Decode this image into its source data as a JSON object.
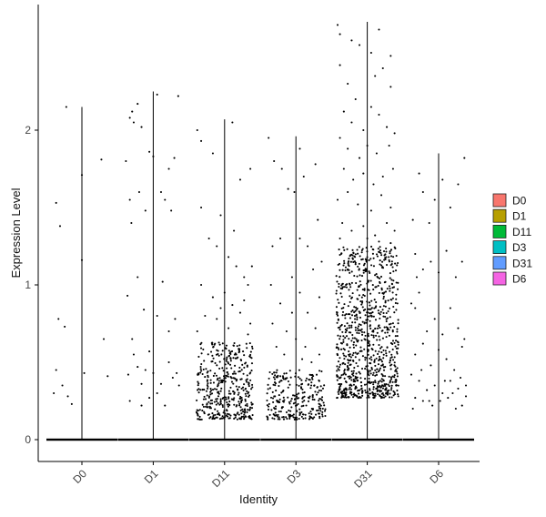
{
  "chart_data": {
    "type": "scatter",
    "subtype": "violin-jitter",
    "xlabel": "Identity",
    "ylabel": "Expression Level",
    "categories": [
      "D0",
      "D1",
      "D11",
      "D3",
      "D31",
      "D6"
    ],
    "ylim": [
      -0.15,
      2.8
    ],
    "yticks": [
      0,
      1,
      2
    ],
    "ytick_labels": [
      "0",
      "1",
      "2"
    ],
    "grid": false,
    "legend_position": "right",
    "legend": [
      {
        "label": "D0",
        "color": "#F8766D"
      },
      {
        "label": "D1",
        "color": "#B79F00"
      },
      {
        "label": "D11",
        "color": "#00BA38"
      },
      {
        "label": "D3",
        "color": "#00BFC4"
      },
      {
        "label": "D31",
        "color": "#619CFF"
      },
      {
        "label": "D6",
        "color": "#F564E3"
      }
    ],
    "series": [
      {
        "name": "D0",
        "max": 2.15,
        "points": [
          [
            -0.33,
            1.53
          ],
          [
            -0.28,
            1.38
          ],
          [
            -0.3,
            0.78
          ],
          [
            -0.33,
            0.45
          ],
          [
            -0.22,
            0.73
          ],
          [
            -0.25,
            0.35
          ],
          [
            -0.18,
            0.28
          ],
          [
            -0.13,
            0.23
          ],
          [
            -0.2,
            2.15
          ],
          [
            0.0,
            1.71
          ],
          [
            0.0,
            1.16
          ],
          [
            0.03,
            0.43
          ],
          [
            0.25,
            1.81
          ],
          [
            0.28,
            0.65
          ],
          [
            0.33,
            0.41
          ],
          [
            -0.36,
            0.3
          ]
        ]
      },
      {
        "name": "D1",
        "max": 2.25,
        "points": [
          [
            -0.3,
            2.08
          ],
          [
            -0.27,
            2.12
          ],
          [
            -0.2,
            2.17
          ],
          [
            -0.15,
            2.02
          ],
          [
            -0.25,
            2.05
          ],
          [
            0.05,
            2.23
          ],
          [
            0.32,
            2.22
          ],
          [
            -0.35,
            1.8
          ],
          [
            -0.3,
            1.55
          ],
          [
            -0.28,
            1.4
          ],
          [
            -0.18,
            1.6
          ],
          [
            -0.1,
            1.48
          ],
          [
            -0.05,
            1.86
          ],
          [
            0.0,
            1.83
          ],
          [
            0.1,
            1.6
          ],
          [
            0.15,
            1.55
          ],
          [
            0.2,
            1.75
          ],
          [
            0.23,
            1.48
          ],
          [
            0.27,
            1.82
          ],
          [
            -0.33,
            0.93
          ],
          [
            -0.27,
            0.65
          ],
          [
            -0.2,
            1.05
          ],
          [
            -0.12,
            0.84
          ],
          [
            -0.05,
            0.57
          ],
          [
            0.05,
            0.8
          ],
          [
            0.12,
            1.02
          ],
          [
            0.2,
            0.7
          ],
          [
            0.28,
            0.78
          ],
          [
            -0.32,
            0.42
          ],
          [
            -0.25,
            0.55
          ],
          [
            -0.15,
            0.36
          ],
          [
            -0.1,
            0.45
          ],
          [
            0.0,
            0.43
          ],
          [
            0.1,
            0.36
          ],
          [
            0.2,
            0.5
          ],
          [
            0.25,
            0.4
          ],
          [
            0.33,
            0.35
          ],
          [
            -0.3,
            0.25
          ],
          [
            -0.15,
            0.22
          ],
          [
            -0.05,
            0.27
          ],
          [
            0.05,
            0.3
          ],
          [
            0.15,
            0.22
          ],
          [
            -0.2,
            0.47
          ],
          [
            0.3,
            0.43
          ]
        ]
      },
      {
        "name": "D11",
        "max": 2.07,
        "points": [],
        "gen": {
          "n": 420,
          "min": 0.13,
          "max": 0.63,
          "seed": 11,
          "w": 0.36
        },
        "extra": [
          [
            -0.35,
            2.0
          ],
          [
            -0.3,
            1.93
          ],
          [
            -0.15,
            1.85
          ],
          [
            -0.05,
            1.45
          ],
          [
            0.1,
            2.05
          ],
          [
            0.2,
            1.68
          ],
          [
            0.33,
            1.75
          ],
          [
            -0.3,
            1.5
          ],
          [
            -0.2,
            1.3
          ],
          [
            -0.1,
            1.25
          ],
          [
            0.05,
            1.18
          ],
          [
            0.15,
            1.12
          ],
          [
            0.25,
            1.05
          ],
          [
            0.35,
            1.12
          ],
          [
            -0.3,
            1.0
          ],
          [
            -0.15,
            0.92
          ],
          [
            0.0,
            0.95
          ],
          [
            0.1,
            0.87
          ],
          [
            0.25,
            0.9
          ],
          [
            0.33,
            0.75
          ],
          [
            -0.25,
            0.8
          ],
          [
            -0.1,
            0.78
          ],
          [
            0.05,
            0.72
          ],
          [
            0.2,
            0.82
          ],
          [
            -0.35,
            0.7
          ],
          [
            0.3,
            0.68
          ],
          [
            -0.05,
            0.85
          ],
          [
            0.12,
            1.35
          ],
          [
            0.3,
            1.0
          ]
        ]
      },
      {
        "name": "D3",
        "max": 1.96,
        "points": [],
        "gen": {
          "n": 260,
          "min": 0.13,
          "max": 0.45,
          "seed": 33,
          "w": 0.38
        },
        "extra": [
          [
            -0.35,
            1.95
          ],
          [
            -0.28,
            1.8
          ],
          [
            -0.18,
            1.75
          ],
          [
            -0.1,
            1.62
          ],
          [
            0.05,
            1.88
          ],
          [
            0.1,
            1.7
          ],
          [
            0.25,
            1.78
          ],
          [
            -0.3,
            1.25
          ],
          [
            -0.2,
            1.3
          ],
          [
            -0.05,
            1.05
          ],
          [
            0.05,
            1.3
          ],
          [
            0.15,
            1.25
          ],
          [
            0.28,
            1.42
          ],
          [
            0.33,
            1.15
          ],
          [
            -0.32,
            1.0
          ],
          [
            -0.2,
            0.88
          ],
          [
            -0.05,
            0.82
          ],
          [
            0.05,
            0.95
          ],
          [
            0.15,
            0.82
          ],
          [
            0.3,
            0.92
          ],
          [
            -0.3,
            0.75
          ],
          [
            -0.12,
            0.7
          ],
          [
            0.0,
            0.65
          ],
          [
            0.12,
            0.6
          ],
          [
            0.25,
            0.72
          ],
          [
            -0.25,
            0.6
          ],
          [
            0.3,
            0.55
          ],
          [
            -0.15,
            0.55
          ],
          [
            0.08,
            0.52
          ],
          [
            0.2,
            0.5
          ],
          [
            -0.02,
            1.6
          ],
          [
            0.22,
            1.1
          ]
        ]
      },
      {
        "name": "D31",
        "max": 2.7,
        "points": [],
        "gen": {
          "n": 900,
          "min": 0.27,
          "max": 1.25,
          "seed": 31,
          "w": 0.4
        },
        "extra": [
          [
            -0.38,
            2.68
          ],
          [
            -0.35,
            2.62
          ],
          [
            -0.2,
            2.58
          ],
          [
            -0.1,
            2.55
          ],
          [
            0.05,
            2.5
          ],
          [
            0.15,
            2.65
          ],
          [
            0.3,
            2.48
          ],
          [
            -0.35,
            2.42
          ],
          [
            -0.25,
            2.3
          ],
          [
            -0.15,
            2.2
          ],
          [
            0.1,
            2.35
          ],
          [
            0.2,
            2.4
          ],
          [
            0.3,
            2.28
          ],
          [
            -0.3,
            2.12
          ],
          [
            -0.2,
            2.05
          ],
          [
            -0.05,
            2.0
          ],
          [
            0.05,
            2.15
          ],
          [
            0.15,
            2.1
          ],
          [
            0.25,
            2.02
          ],
          [
            0.35,
            1.98
          ],
          [
            -0.35,
            1.95
          ],
          [
            -0.25,
            1.88
          ],
          [
            -0.1,
            1.82
          ],
          [
            0.0,
            1.9
          ],
          [
            0.12,
            1.85
          ],
          [
            0.28,
            1.9
          ],
          [
            -0.3,
            1.75
          ],
          [
            -0.18,
            1.68
          ],
          [
            -0.05,
            1.72
          ],
          [
            0.08,
            1.65
          ],
          [
            0.2,
            1.7
          ],
          [
            0.33,
            1.75
          ],
          [
            -0.38,
            1.55
          ],
          [
            -0.25,
            1.6
          ],
          [
            -0.12,
            1.52
          ],
          [
            0.05,
            1.48
          ],
          [
            0.18,
            1.58
          ],
          [
            0.3,
            1.5
          ],
          [
            -0.32,
            1.4
          ],
          [
            -0.2,
            1.35
          ],
          [
            -0.05,
            1.38
          ],
          [
            0.1,
            1.32
          ],
          [
            0.25,
            1.4
          ],
          [
            0.35,
            1.35
          ],
          [
            -0.35,
            1.3
          ],
          [
            0.0,
            1.3
          ],
          [
            0.15,
            1.28
          ],
          [
            0.3,
            1.27
          ]
        ]
      },
      {
        "name": "D6",
        "max": 1.85,
        "points": [
          [
            -0.25,
            1.72
          ],
          [
            -0.2,
            1.6
          ],
          [
            -0.12,
            1.4
          ],
          [
            -0.05,
            1.55
          ],
          [
            0.05,
            1.68
          ],
          [
            0.15,
            1.5
          ],
          [
            0.25,
            1.65
          ],
          [
            0.33,
            1.82
          ],
          [
            -0.33,
            1.42
          ],
          [
            -0.3,
            1.2
          ],
          [
            -0.28,
            1.05
          ],
          [
            -0.2,
            1.1
          ],
          [
            -0.1,
            1.15
          ],
          [
            0.0,
            1.08
          ],
          [
            0.1,
            1.22
          ],
          [
            0.22,
            1.05
          ],
          [
            0.3,
            1.15
          ],
          [
            -0.35,
            0.88
          ],
          [
            -0.3,
            0.85
          ],
          [
            -0.25,
            0.95
          ],
          [
            -0.15,
            0.7
          ],
          [
            -0.05,
            0.78
          ],
          [
            0.05,
            0.68
          ],
          [
            0.15,
            0.85
          ],
          [
            0.25,
            0.72
          ],
          [
            0.33,
            0.65
          ],
          [
            -0.3,
            0.55
          ],
          [
            -0.2,
            0.62
          ],
          [
            -0.1,
            0.48
          ],
          [
            0.0,
            0.58
          ],
          [
            0.1,
            0.52
          ],
          [
            0.2,
            0.45
          ],
          [
            0.3,
            0.6
          ],
          [
            -0.35,
            0.42
          ],
          [
            -0.25,
            0.38
          ],
          [
            -0.15,
            0.32
          ],
          [
            -0.05,
            0.35
          ],
          [
            0.05,
            0.3
          ],
          [
            0.15,
            0.38
          ],
          [
            0.25,
            0.33
          ],
          [
            0.35,
            0.28
          ],
          [
            -0.3,
            0.27
          ],
          [
            -0.2,
            0.25
          ],
          [
            -0.08,
            0.22
          ],
          [
            0.02,
            0.25
          ],
          [
            0.12,
            0.27
          ],
          [
            0.22,
            0.2
          ],
          [
            0.3,
            0.22
          ],
          [
            -0.33,
            0.2
          ],
          [
            0.35,
            0.35
          ],
          [
            -0.12,
            0.25
          ],
          [
            0.08,
            0.38
          ],
          [
            0.18,
            0.3
          ],
          [
            0.28,
            0.4
          ],
          [
            -0.22,
            0.45
          ]
        ]
      }
    ]
  }
}
